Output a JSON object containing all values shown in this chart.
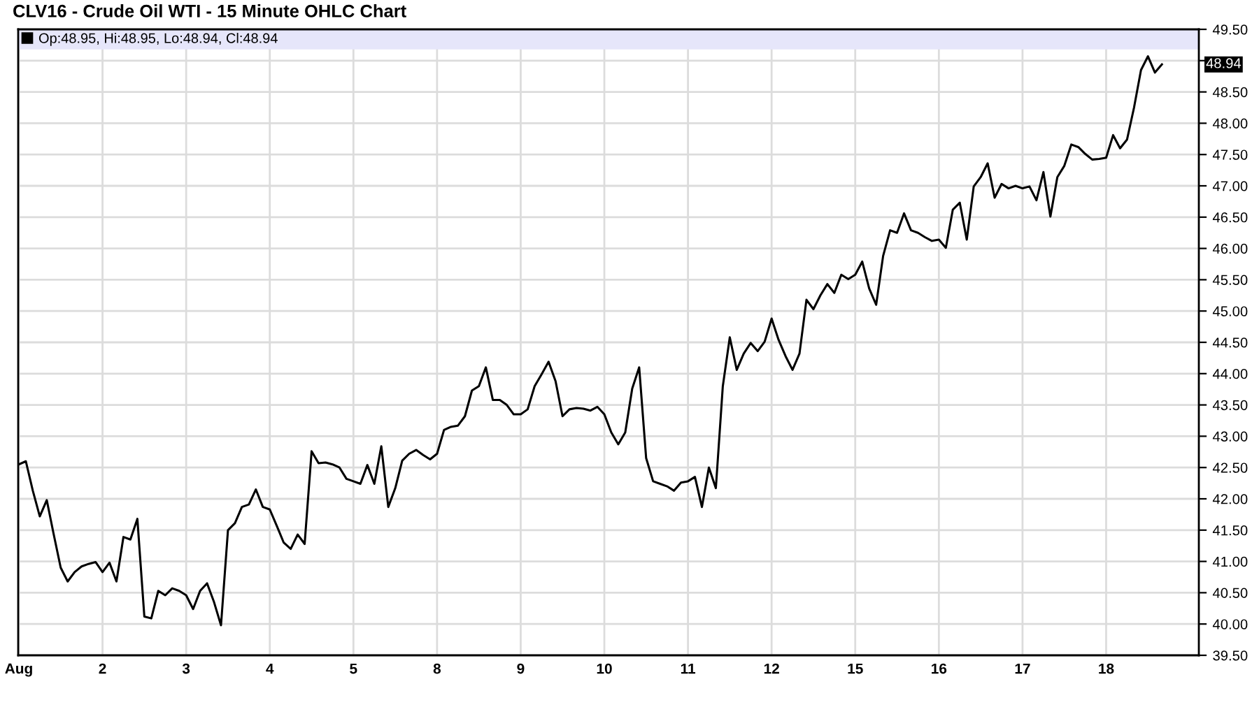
{
  "chart_data": {
    "type": "line",
    "title": "CLV16 - Crude Oil WTI - 15 Minute OHLC Chart",
    "categories": [
      "Aug",
      null,
      null,
      null,
      null,
      null,
      null,
      null,
      null,
      null,
      null,
      null,
      "2",
      null,
      null,
      null,
      null,
      null,
      null,
      null,
      null,
      null,
      null,
      null,
      "3",
      null,
      null,
      null,
      null,
      null,
      null,
      null,
      null,
      null,
      null,
      null,
      "4",
      null,
      null,
      null,
      null,
      null,
      null,
      null,
      null,
      null,
      null,
      null,
      "5",
      null,
      null,
      null,
      null,
      null,
      null,
      null,
      null,
      null,
      null,
      null,
      "8",
      null,
      null,
      null,
      null,
      null,
      null,
      null,
      null,
      null,
      null,
      null,
      "9",
      null,
      null,
      null,
      null,
      null,
      null,
      null,
      null,
      null,
      null,
      null,
      "10",
      null,
      null,
      null,
      null,
      null,
      null,
      null,
      null,
      null,
      null,
      null,
      "11",
      null,
      null,
      null,
      null,
      null,
      null,
      null,
      null,
      null,
      null,
      null,
      "12",
      null,
      null,
      null,
      null,
      null,
      null,
      null,
      null,
      null,
      null,
      null,
      "15",
      null,
      null,
      null,
      null,
      null,
      null,
      null,
      null,
      null,
      null,
      null,
      "16",
      null,
      null,
      null,
      null,
      null,
      null,
      null,
      null,
      null,
      null,
      null,
      "17",
      null,
      null,
      null,
      null,
      null,
      null,
      null,
      null,
      null,
      null,
      null,
      "18",
      null,
      null,
      null,
      null,
      null,
      null,
      null,
      null,
      null,
      null,
      null,
      null,
      null
    ],
    "series": [
      {
        "name": "Op:48.95, Hi:48.95, Lo:48.94, Cl:48.94",
        "color": "#000000",
        "values": [
          42.55,
          42.6,
          42.13,
          41.72,
          41.98,
          41.43,
          40.9,
          40.68,
          40.83,
          40.92,
          40.96,
          40.99,
          40.83,
          40.98,
          40.68,
          41.39,
          41.35,
          41.68,
          40.12,
          40.09,
          40.53,
          40.46,
          40.57,
          40.53,
          40.46,
          40.24,
          40.53,
          40.65,
          40.35,
          39.98,
          41.5,
          41.61,
          41.87,
          41.91,
          42.15,
          41.87,
          41.83,
          41.57,
          41.3,
          41.2,
          41.43,
          41.28,
          42.76,
          42.57,
          42.58,
          42.55,
          42.5,
          42.32,
          42.28,
          42.24,
          42.54,
          42.24,
          42.84,
          41.87,
          42.17,
          42.61,
          42.72,
          42.78,
          42.7,
          42.63,
          42.72,
          43.1,
          43.15,
          43.17,
          43.32,
          43.73,
          43.8,
          44.1,
          43.58,
          43.58,
          43.5,
          43.35,
          43.35,
          43.43,
          43.8,
          43.99,
          44.19,
          43.88,
          43.32,
          43.43,
          43.45,
          43.44,
          43.41,
          43.47,
          43.35,
          43.06,
          42.87,
          43.06,
          43.76,
          44.1,
          42.65,
          42.28,
          42.24,
          42.2,
          42.13,
          42.26,
          42.28,
          42.35,
          41.87,
          42.5,
          42.17,
          43.8,
          44.58,
          44.06,
          44.32,
          44.49,
          44.36,
          44.51,
          44.88,
          44.54,
          44.28,
          44.06,
          44.32,
          45.18,
          45.03,
          45.25,
          45.43,
          45.29,
          45.58,
          45.51,
          45.58,
          45.79,
          45.36,
          45.1,
          45.88,
          46.29,
          46.25,
          46.56,
          46.29,
          46.25,
          46.18,
          46.12,
          46.14,
          46.01,
          46.62,
          46.73,
          46.14,
          46.99,
          47.14,
          47.36,
          46.81,
          47.03,
          46.96,
          47.0,
          46.96,
          46.99,
          46.77,
          47.22,
          46.51,
          47.14,
          47.32,
          47.66,
          47.62,
          47.51,
          47.42,
          47.43,
          47.45,
          47.81,
          47.6,
          47.74,
          48.25,
          48.85,
          49.07,
          48.81,
          48.94,
          null,
          null,
          null,
          null,
          null
        ]
      }
    ],
    "line_style": "solid",
    "ylim": [
      39.5,
      49.5
    ],
    "yticks": [
      {
        "value": 39.5,
        "label": "39.50"
      },
      {
        "value": 40,
        "label": "40.00"
      },
      {
        "value": 40.5,
        "label": "40.50"
      },
      {
        "value": 41,
        "label": "41.00"
      },
      {
        "value": 41.5,
        "label": "41.50"
      },
      {
        "value": 42,
        "label": "42.00"
      },
      {
        "value": 42.5,
        "label": "42.50"
      },
      {
        "value": 43,
        "label": "43.00"
      },
      {
        "value": 43.5,
        "label": "43.50"
      },
      {
        "value": 44,
        "label": "44.00"
      },
      {
        "value": 44.5,
        "label": "44.50"
      },
      {
        "value": 45,
        "label": "45.00"
      },
      {
        "value": 45.5,
        "label": "45.50"
      },
      {
        "value": 46,
        "label": "46.00"
      },
      {
        "value": 46.5,
        "label": "46.50"
      },
      {
        "value": 47,
        "label": "47.00"
      },
      {
        "value": 47.5,
        "label": "47.50"
      },
      {
        "value": 48,
        "label": "48.00"
      },
      {
        "value": 48.5,
        "label": "48.50"
      },
      {
        "value": 49,
        "label": null
      },
      {
        "value": 49.5,
        "label": "49.50"
      }
    ],
    "grid": true,
    "legend": "top",
    "annotations": [
      "48.94"
    ]
  }
}
